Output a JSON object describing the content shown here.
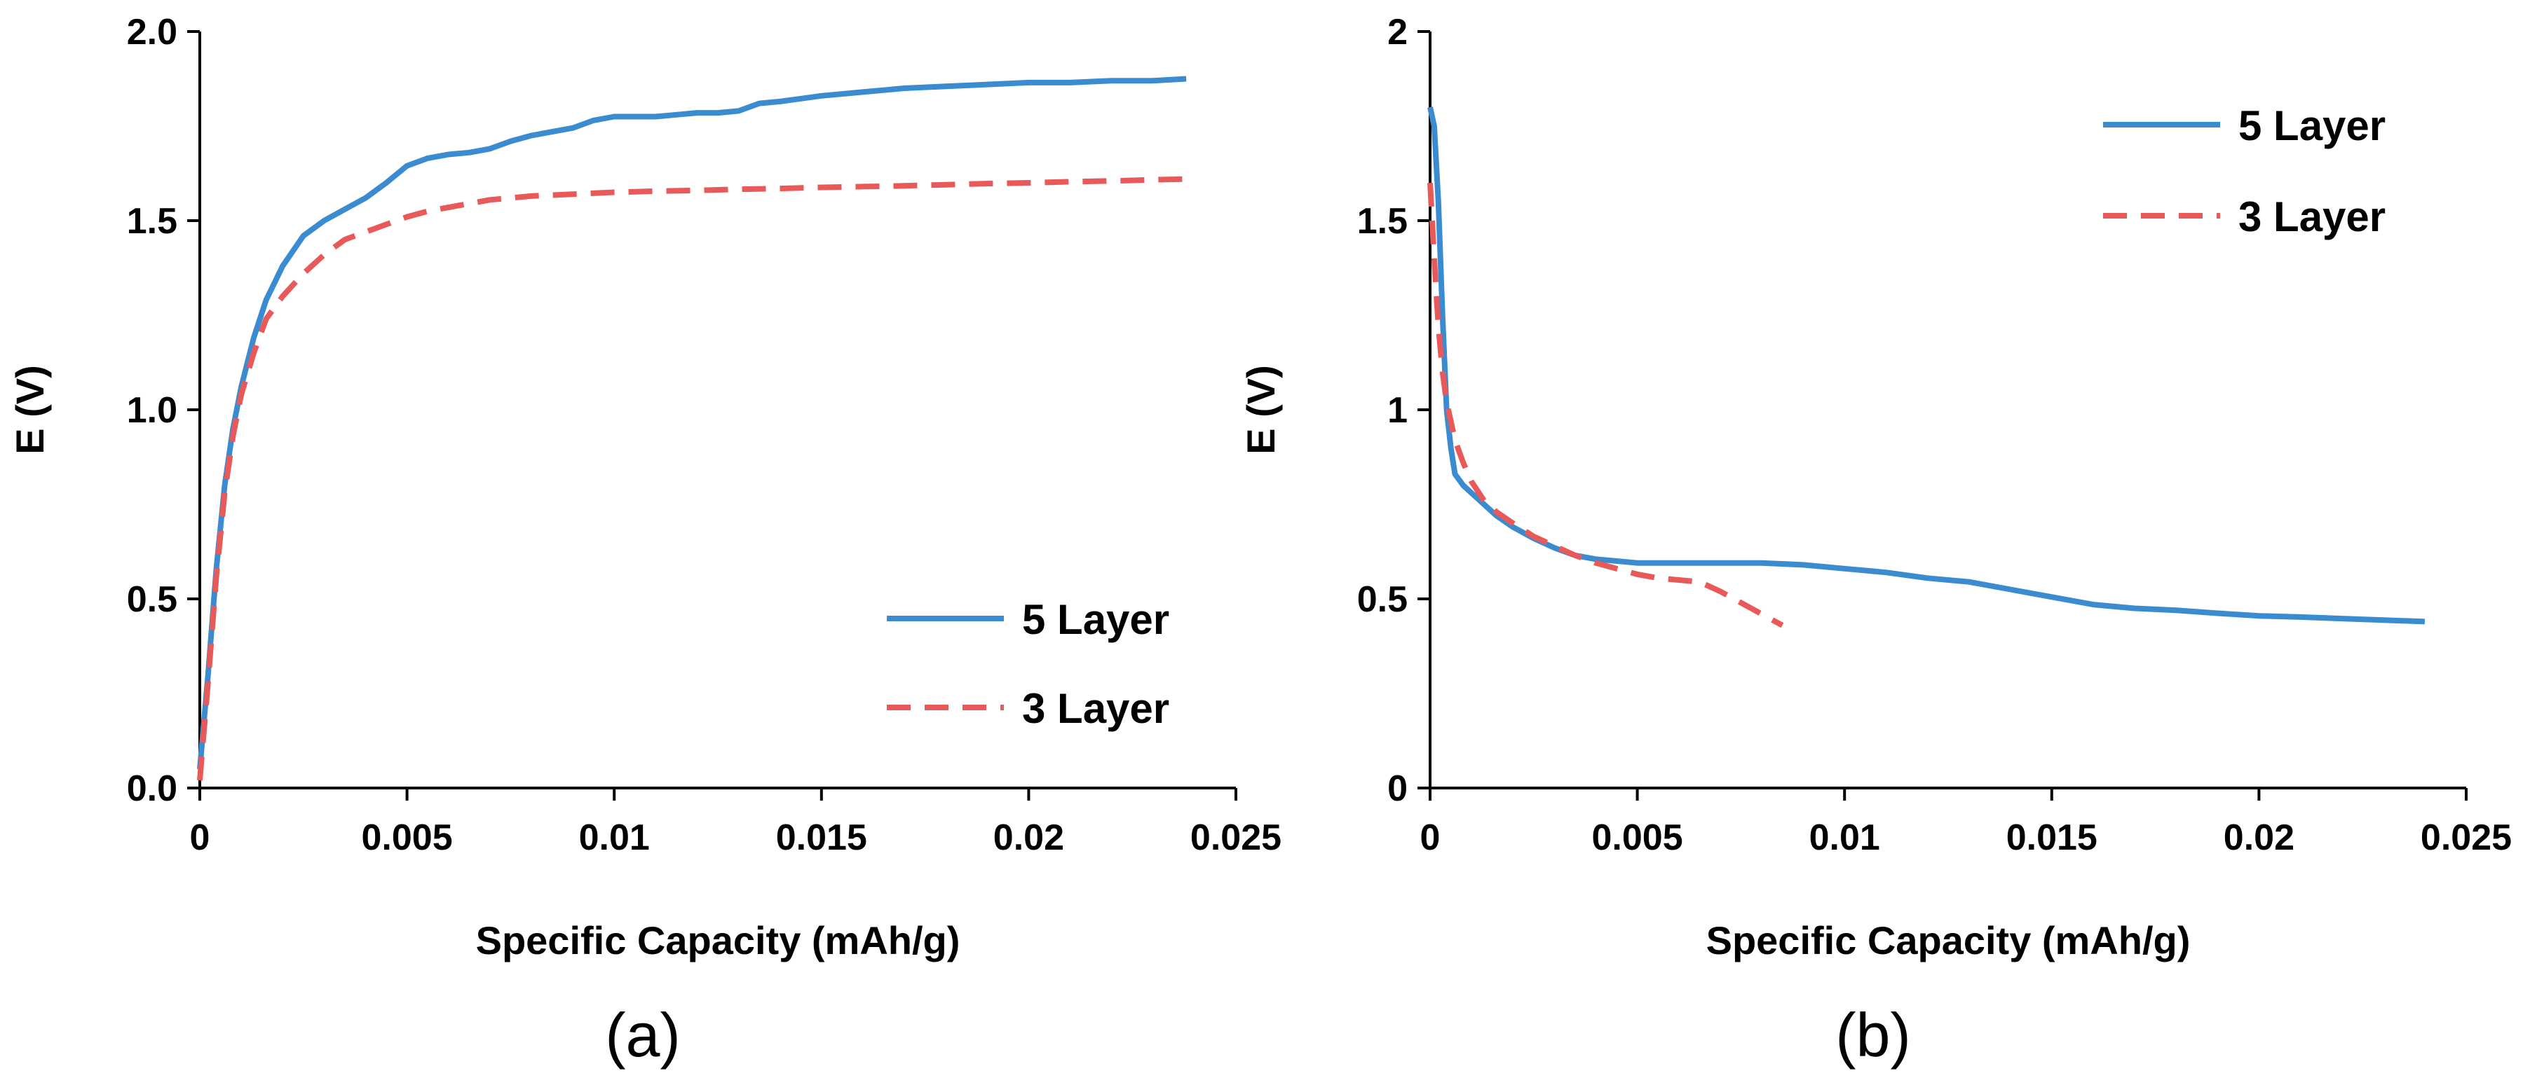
{
  "chart_data": [
    {
      "type": "line",
      "panel_label": "(a)",
      "title": "",
      "xlabel": "Specific Capacity (mAh/g)",
      "ylabel": "E (V)",
      "xlim": [
        0,
        0.025
      ],
      "ylim": [
        0,
        2.0
      ],
      "x_ticks": [
        "0",
        "0.005",
        "0.01",
        "0.015",
        "0.02",
        "0.025"
      ],
      "x_tick_values": [
        0,
        0.005,
        0.01,
        0.015,
        0.02,
        0.025
      ],
      "y_ticks": [
        "0.0",
        "0.5",
        "1.0",
        "1.5",
        "2.0"
      ],
      "y_tick_values": [
        0,
        0.5,
        1.0,
        1.5,
        2.0
      ],
      "grid": false,
      "legend_position": "bottom-right",
      "series": [
        {
          "name": "5 Layer",
          "color": "#3b8bd0",
          "dash": "solid",
          "x": [
            0,
            0.0002,
            0.0004,
            0.0006,
            0.0008,
            0.001,
            0.0013,
            0.0016,
            0.002,
            0.0025,
            0.003,
            0.0035,
            0.004,
            0.0045,
            0.005,
            0.0055,
            0.006,
            0.0065,
            0.007,
            0.0075,
            0.008,
            0.0085,
            0.009,
            0.0095,
            0.01,
            0.0105,
            0.011,
            0.0115,
            0.012,
            0.0125,
            0.013,
            0.0135,
            0.014,
            0.015,
            0.016,
            0.017,
            0.018,
            0.019,
            0.02,
            0.021,
            0.022,
            0.023,
            0.0238
          ],
          "y": [
            0.05,
            0.3,
            0.58,
            0.8,
            0.95,
            1.06,
            1.19,
            1.29,
            1.38,
            1.46,
            1.5,
            1.53,
            1.56,
            1.6,
            1.645,
            1.665,
            1.675,
            1.68,
            1.69,
            1.71,
            1.725,
            1.735,
            1.745,
            1.765,
            1.775,
            1.775,
            1.775,
            1.78,
            1.785,
            1.785,
            1.79,
            1.81,
            1.815,
            1.83,
            1.84,
            1.85,
            1.855,
            1.86,
            1.865,
            1.865,
            1.87,
            1.87,
            1.875
          ]
        },
        {
          "name": "3 Layer",
          "color": "#e85a5a",
          "dash": "dashed",
          "x": [
            0,
            0.0002,
            0.0004,
            0.0006,
            0.0008,
            0.001,
            0.0013,
            0.0016,
            0.002,
            0.0025,
            0.003,
            0.0035,
            0.004,
            0.0045,
            0.005,
            0.0055,
            0.006,
            0.007,
            0.008,
            0.009,
            0.01,
            0.011,
            0.012,
            0.013,
            0.014,
            0.015,
            0.016,
            0.017,
            0.018,
            0.019,
            0.02,
            0.021,
            0.022,
            0.023,
            0.0238
          ],
          "y": [
            0.02,
            0.28,
            0.56,
            0.78,
            0.93,
            1.04,
            1.15,
            1.24,
            1.3,
            1.36,
            1.41,
            1.45,
            1.47,
            1.49,
            1.51,
            1.525,
            1.535,
            1.555,
            1.565,
            1.57,
            1.575,
            1.578,
            1.58,
            1.583,
            1.585,
            1.588,
            1.59,
            1.592,
            1.595,
            1.598,
            1.6,
            1.603,
            1.605,
            1.608,
            1.61
          ]
        }
      ]
    },
    {
      "type": "line",
      "panel_label": "(b)",
      "title": "",
      "xlabel": "Specific Capacity (mAh/g)",
      "ylabel": "E (V)",
      "xlim": [
        0,
        0.025
      ],
      "ylim": [
        0,
        2
      ],
      "x_ticks": [
        "0",
        "0.005",
        "0.01",
        "0.015",
        "0.02",
        "0.025"
      ],
      "x_tick_values": [
        0,
        0.005,
        0.01,
        0.015,
        0.02,
        0.025
      ],
      "y_ticks": [
        "0",
        "0.5",
        "1",
        "1.5",
        "2"
      ],
      "y_tick_values": [
        0,
        0.5,
        1,
        1.5,
        2
      ],
      "grid": false,
      "legend_position": "top-right",
      "series": [
        {
          "name": "5 Layer",
          "color": "#3b8bd0",
          "dash": "solid",
          "x": [
            0,
            0.0001,
            0.0002,
            0.0003,
            0.0004,
            0.0005,
            0.0006,
            0.0008,
            0.001,
            0.0013,
            0.0016,
            0.002,
            0.0025,
            0.003,
            0.0035,
            0.004,
            0.005,
            0.006,
            0.007,
            0.008,
            0.009,
            0.01,
            0.011,
            0.012,
            0.013,
            0.014,
            0.015,
            0.016,
            0.017,
            0.018,
            0.019,
            0.02,
            0.021,
            0.022,
            0.023,
            0.024
          ],
          "y": [
            1.8,
            1.75,
            1.55,
            1.25,
            1.0,
            0.9,
            0.83,
            0.8,
            0.78,
            0.75,
            0.72,
            0.69,
            0.66,
            0.635,
            0.615,
            0.605,
            0.595,
            0.595,
            0.595,
            0.595,
            0.59,
            0.58,
            0.57,
            0.555,
            0.545,
            0.525,
            0.505,
            0.485,
            0.475,
            0.47,
            0.462,
            0.455,
            0.452,
            0.448,
            0.444,
            0.44
          ]
        },
        {
          "name": "3 Layer",
          "color": "#e85a5a",
          "dash": "dashed",
          "x": [
            0,
            0.0001,
            0.0002,
            0.0003,
            0.0004,
            0.0005,
            0.0006,
            0.0008,
            0.001,
            0.0013,
            0.0016,
            0.002,
            0.0025,
            0.003,
            0.0035,
            0.004,
            0.0045,
            0.005,
            0.0055,
            0.006,
            0.0065,
            0.007,
            0.0075,
            0.008,
            0.0085
          ],
          "y": [
            1.6,
            1.4,
            1.22,
            1.1,
            1.02,
            0.97,
            0.92,
            0.86,
            0.81,
            0.76,
            0.73,
            0.7,
            0.665,
            0.64,
            0.615,
            0.595,
            0.58,
            0.565,
            0.555,
            0.55,
            0.545,
            0.52,
            0.49,
            0.46,
            0.43
          ]
        }
      ]
    }
  ]
}
